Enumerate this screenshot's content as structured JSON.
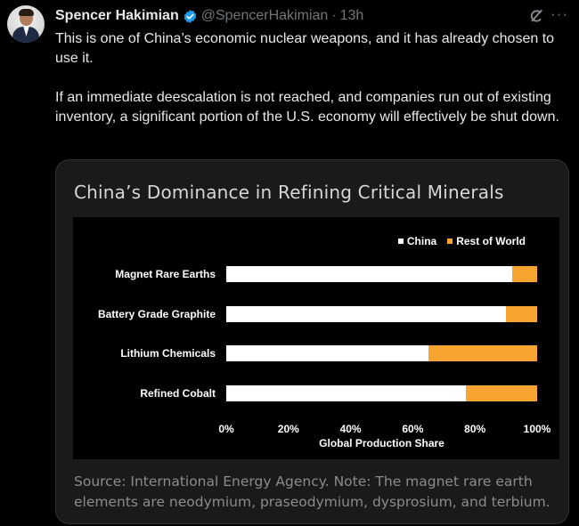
{
  "tweet": {
    "author_name": "Spencer Hakimian",
    "handle": "@SpencerHakimian",
    "separator": "·",
    "time": "13h",
    "paragraph1": "This is one of China’s economic nuclear weapons, and it has already chosen to use it.",
    "paragraph2": "If an immediate deescalation is not reached, and companies run out of existing inventory, a significant portion of the U.S. economy will effectively be shut down.",
    "more_label": "···"
  },
  "card": {
    "title": "China’s Dominance in Refining Critical Minerals",
    "source": "Source: International Energy Agency. Note: The magnet rare earth elements are neodymium, praseodymium, dysprosium, and terbium."
  },
  "colors": {
    "china": "#ffffff",
    "rest_of_world": "#f7a530",
    "verified": "#1d9bf0"
  },
  "icons": {
    "verified": "verified-badge-icon",
    "grok": "grok-icon",
    "more": "more-icon"
  },
  "chart_data": {
    "type": "bar",
    "orientation": "horizontal",
    "stacked": true,
    "title": "China’s Dominance in Refining Critical Minerals",
    "categories": [
      "Magnet Rare Earths",
      "Battery Grade Graphite",
      "Lithium Chemicals",
      "Refined Cobalt"
    ],
    "series": [
      {
        "name": "China",
        "values": [
          92,
          90,
          65,
          77
        ]
      },
      {
        "name": "Rest of World",
        "values": [
          8,
          10,
          35,
          23
        ]
      }
    ],
    "xlabel": "Global Production Share",
    "ylabel": "",
    "xlim": [
      0,
      100
    ],
    "ticks": [
      "0%",
      "20%",
      "40%",
      "60%",
      "80%",
      "100%"
    ],
    "legend_position": "top-right",
    "grid": false
  }
}
